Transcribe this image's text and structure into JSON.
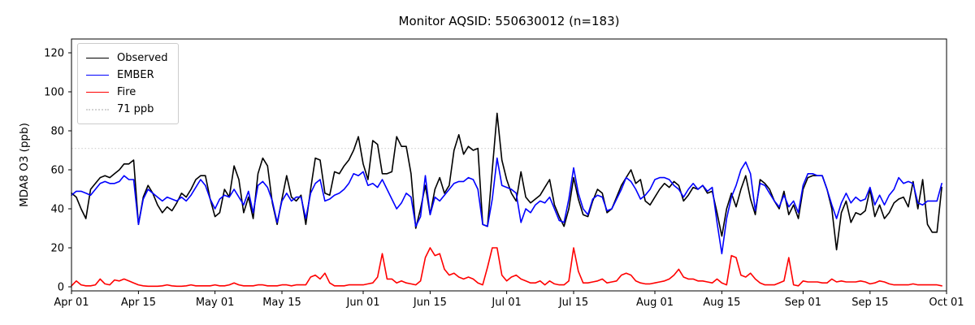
{
  "chart_data": {
    "type": "line",
    "title": "Monitor AQSID: 550630012 (n=183)",
    "ylabel": "MDA8 O3 (ppb)",
    "xlabel": "",
    "n_points": 183,
    "grid": false,
    "legend_position": "upper left",
    "ylim": [
      -2,
      127
    ],
    "y_ticks": [
      0,
      20,
      40,
      60,
      80,
      100,
      120
    ],
    "x_range_days": 183,
    "x_ticks": [
      {
        "label": "Apr 01",
        "day": 0
      },
      {
        "label": "Apr 15",
        "day": 14
      },
      {
        "label": "May 01",
        "day": 30
      },
      {
        "label": "May 15",
        "day": 44
      },
      {
        "label": "Jun 01",
        "day": 61
      },
      {
        "label": "Jun 15",
        "day": 75
      },
      {
        "label": "Jul 01",
        "day": 91
      },
      {
        "label": "Jul 15",
        "day": 105
      },
      {
        "label": "Aug 01",
        "day": 122
      },
      {
        "label": "Aug 15",
        "day": 136
      },
      {
        "label": "Sep 01",
        "day": 153
      },
      {
        "label": "Sep 15",
        "day": 167
      },
      {
        "label": "Oct 01",
        "day": 183
      }
    ],
    "reference_line": {
      "label": "71 ppb",
      "value": 71,
      "color": "#d3d3d3",
      "style": "dotted"
    },
    "series": [
      {
        "name": "Observed",
        "color": "#000000",
        "values": [
          48,
          46,
          40,
          35,
          50,
          53,
          56,
          57,
          56,
          58,
          60,
          63,
          63,
          65,
          32,
          46,
          52,
          48,
          42,
          38,
          41,
          39,
          43,
          48,
          46,
          50,
          55,
          57,
          57,
          45,
          36,
          38,
          50,
          46,
          62,
          55,
          38,
          46,
          35,
          58,
          66,
          62,
          43,
          32,
          45,
          57,
          46,
          44,
          47,
          32,
          50,
          66,
          65,
          48,
          47,
          59,
          58,
          62,
          65,
          70,
          77,
          63,
          55,
          75,
          73,
          58,
          58,
          59,
          77,
          72,
          72,
          58,
          30,
          40,
          52,
          37,
          50,
          56,
          48,
          52,
          70,
          78,
          68,
          72,
          70,
          71,
          32,
          31,
          60,
          89,
          65,
          55,
          48,
          44,
          59,
          46,
          43,
          45,
          47,
          51,
          55,
          42,
          36,
          31,
          40,
          56,
          45,
          37,
          36,
          44,
          50,
          48,
          38,
          40,
          46,
          52,
          56,
          60,
          53,
          55,
          44,
          42,
          46,
          50,
          53,
          51,
          54,
          52,
          44,
          47,
          51,
          50,
          52,
          48,
          49,
          38,
          26,
          40,
          48,
          41,
          50,
          57,
          45,
          37,
          55,
          53,
          50,
          44,
          40,
          49,
          37,
          42,
          35,
          50,
          56,
          57,
          57,
          57,
          50,
          40,
          19,
          38,
          44,
          33,
          38,
          37,
          39,
          50,
          36,
          42,
          35,
          38,
          43,
          45,
          46,
          41,
          54,
          40,
          55,
          32,
          28,
          28,
          51
        ]
      },
      {
        "name": "EMBER",
        "color": "#0000ff",
        "values": [
          47,
          49,
          49,
          48,
          47,
          50,
          53,
          54,
          53,
          53,
          54,
          57,
          55,
          55,
          32,
          45,
          50,
          48,
          46,
          44,
          46,
          45,
          44,
          46,
          44,
          47,
          51,
          55,
          52,
          45,
          40,
          45,
          47,
          46,
          50,
          46,
          42,
          49,
          38,
          52,
          54,
          51,
          44,
          33,
          44,
          48,
          44,
          46,
          46,
          35,
          48,
          53,
          55,
          44,
          45,
          47,
          48,
          50,
          53,
          58,
          57,
          59,
          52,
          53,
          51,
          55,
          50,
          45,
          40,
          43,
          48,
          46,
          31,
          36,
          57,
          37,
          46,
          44,
          47,
          50,
          53,
          54,
          54,
          56,
          55,
          50,
          32,
          31,
          45,
          66,
          52,
          51,
          50,
          48,
          33,
          40,
          38,
          42,
          44,
          43,
          46,
          40,
          34,
          33,
          45,
          61,
          48,
          40,
          37,
          45,
          47,
          46,
          39,
          40,
          45,
          50,
          56,
          54,
          50,
          45,
          47,
          50,
          55,
          56,
          56,
          55,
          52,
          50,
          46,
          50,
          53,
          50,
          52,
          49,
          51,
          33,
          17,
          35,
          46,
          52,
          60,
          64,
          58,
          39,
          53,
          52,
          48,
          44,
          41,
          47,
          41,
          44,
          38,
          52,
          58,
          58,
          57,
          57,
          50,
          42,
          35,
          43,
          48,
          43,
          46,
          44,
          45,
          51,
          42,
          47,
          42,
          47,
          50,
          56,
          53,
          54,
          53,
          43,
          42,
          44,
          44,
          44,
          53
        ]
      },
      {
        "name": "Fire",
        "color": "#ff0000",
        "values": [
          0.5,
          3,
          1,
          0.5,
          0.5,
          1,
          4,
          1.5,
          1,
          3.5,
          3,
          4,
          3,
          2,
          1,
          0.5,
          0.3,
          0.3,
          0.3,
          0.5,
          1,
          0.5,
          0.3,
          0.3,
          0.5,
          1,
          0.5,
          0.5,
          0.5,
          0.5,
          1,
          0.5,
          0.5,
          1,
          2,
          1,
          0.5,
          0.5,
          0.5,
          1,
          1,
          0.5,
          0.5,
          0.5,
          1,
          1,
          0.5,
          1,
          1,
          1,
          5,
          6,
          4,
          7,
          2,
          0.5,
          0.5,
          0.5,
          1,
          1,
          1,
          1,
          1.5,
          2,
          5,
          17,
          4,
          4,
          2,
          3,
          2,
          1.5,
          1,
          3,
          15,
          20,
          16,
          17,
          9,
          6,
          7,
          5,
          4,
          5,
          4,
          2,
          1,
          10,
          20,
          20,
          6,
          3,
          5,
          6,
          4,
          3,
          2,
          2,
          3,
          1,
          3,
          1.5,
          1,
          1,
          3,
          20,
          8,
          2,
          2,
          2.5,
          3,
          4,
          2,
          2.5,
          3,
          6,
          7,
          6,
          3,
          2,
          1.5,
          1.5,
          2,
          2.5,
          3,
          4,
          6,
          9,
          5,
          4,
          4,
          3,
          3,
          2.5,
          2,
          4,
          2,
          1,
          16,
          15,
          6,
          5,
          7,
          4,
          2,
          1,
          1,
          1,
          2,
          3,
          15,
          1,
          0.5,
          3,
          2.5,
          2.5,
          2.5,
          2,
          2,
          4,
          2.5,
          3,
          2.5,
          2.5,
          2.5,
          3,
          2.5,
          1.5,
          2,
          3,
          2.5,
          1.5,
          1,
          1,
          1,
          1,
          1.5,
          1,
          1,
          1,
          1,
          1,
          0.5
        ]
      }
    ]
  }
}
